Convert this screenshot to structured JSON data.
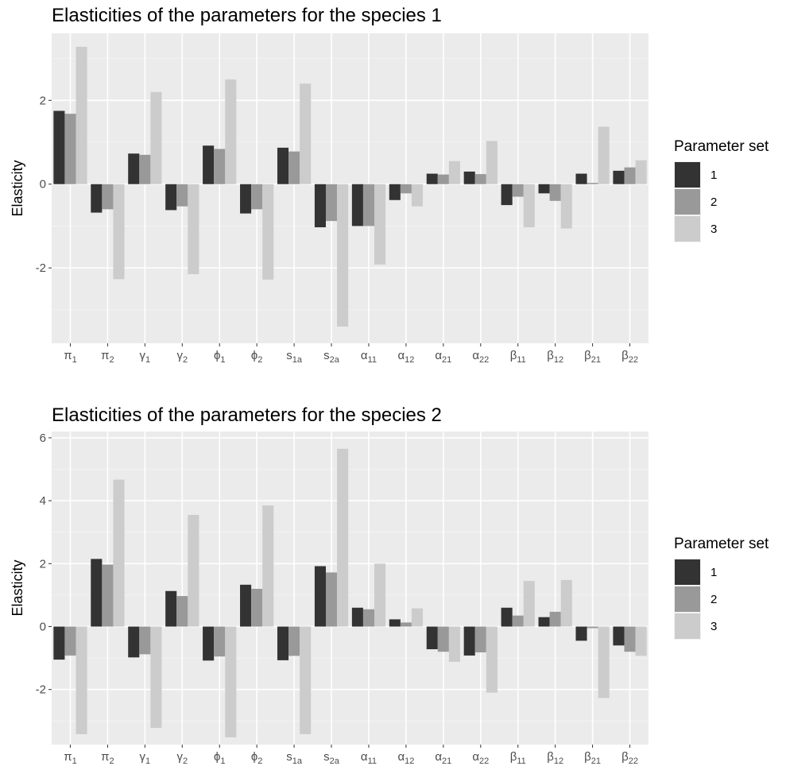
{
  "chart_data": [
    {
      "type": "bar",
      "title": "Elasticities of the parameters for the species 1",
      "ylabel": "Elasticity",
      "xlabel": "",
      "ylim": [
        -3.8,
        3.6
      ],
      "yticks": [
        -2,
        0,
        2
      ],
      "grid": true,
      "legend": {
        "title": "Parameter set",
        "position": "right"
      },
      "categories": [
        {
          "base": "π",
          "sub": "1"
        },
        {
          "base": "π",
          "sub": "2"
        },
        {
          "base": "γ",
          "sub": "1"
        },
        {
          "base": "γ",
          "sub": "2"
        },
        {
          "base": "ϕ",
          "sub": "1"
        },
        {
          "base": "ϕ",
          "sub": "2"
        },
        {
          "base": "s",
          "sub": "1a"
        },
        {
          "base": "s",
          "sub": "2a"
        },
        {
          "base": "α",
          "sub": "11"
        },
        {
          "base": "α",
          "sub": "12"
        },
        {
          "base": "α",
          "sub": "21"
        },
        {
          "base": "α",
          "sub": "22"
        },
        {
          "base": "β",
          "sub": "11"
        },
        {
          "base": "β",
          "sub": "12"
        },
        {
          "base": "β",
          "sub": "21"
        },
        {
          "base": "β",
          "sub": "22"
        }
      ],
      "series": [
        {
          "name": "1",
          "color": "#333333",
          "values": [
            1.75,
            -0.68,
            0.73,
            -0.62,
            0.92,
            -0.7,
            0.87,
            -1.03,
            -1.0,
            -0.38,
            0.25,
            0.3,
            -0.5,
            -0.22,
            0.25,
            0.32
          ]
        },
        {
          "name": "2",
          "color": "#999999",
          "values": [
            1.68,
            -0.6,
            0.7,
            -0.53,
            0.84,
            -0.6,
            0.78,
            -0.88,
            -1.0,
            -0.22,
            0.23,
            0.24,
            -0.3,
            -0.4,
            0.03,
            0.4
          ]
        },
        {
          "name": "3",
          "color": "#cccccc",
          "values": [
            3.28,
            -2.27,
            2.2,
            -2.15,
            2.5,
            -2.28,
            2.4,
            -3.4,
            -1.92,
            -0.53,
            0.55,
            1.03,
            -1.03,
            -1.06,
            1.37,
            0.57
          ]
        }
      ]
    },
    {
      "type": "bar",
      "title": "Elasticities of the parameters for the species 2",
      "ylabel": "Elasticity",
      "xlabel": "",
      "ylim": [
        -3.75,
        6.2
      ],
      "yticks": [
        -2,
        0,
        2,
        4,
        6
      ],
      "grid": true,
      "legend": {
        "title": "Parameter set",
        "position": "right"
      },
      "categories": [
        {
          "base": "π",
          "sub": "1"
        },
        {
          "base": "π",
          "sub": "2"
        },
        {
          "base": "γ",
          "sub": "1"
        },
        {
          "base": "γ",
          "sub": "2"
        },
        {
          "base": "ϕ",
          "sub": "1"
        },
        {
          "base": "ϕ",
          "sub": "2"
        },
        {
          "base": "s",
          "sub": "1a"
        },
        {
          "base": "s",
          "sub": "2a"
        },
        {
          "base": "α",
          "sub": "11"
        },
        {
          "base": "α",
          "sub": "12"
        },
        {
          "base": "α",
          "sub": "21"
        },
        {
          "base": "α",
          "sub": "22"
        },
        {
          "base": "β",
          "sub": "11"
        },
        {
          "base": "β",
          "sub": "12"
        },
        {
          "base": "β",
          "sub": "21"
        },
        {
          "base": "β",
          "sub": "22"
        }
      ],
      "series": [
        {
          "name": "1",
          "color": "#333333",
          "values": [
            -1.05,
            2.15,
            -0.98,
            1.13,
            -1.08,
            1.33,
            -1.07,
            1.92,
            0.6,
            0.23,
            -0.72,
            -0.92,
            0.6,
            0.3,
            -0.45,
            -0.6
          ]
        },
        {
          "name": "2",
          "color": "#999999",
          "values": [
            -0.92,
            1.97,
            -0.88,
            0.97,
            -0.95,
            1.2,
            -0.93,
            1.72,
            0.55,
            0.13,
            -0.8,
            -0.82,
            0.35,
            0.47,
            -0.05,
            -0.8
          ]
        },
        {
          "name": "3",
          "color": "#cccccc",
          "values": [
            -3.42,
            4.67,
            -3.22,
            3.55,
            -3.52,
            3.85,
            -3.42,
            5.65,
            2.0,
            0.58,
            -1.12,
            -2.1,
            1.45,
            1.48,
            -2.27,
            -0.93
          ]
        }
      ]
    }
  ]
}
